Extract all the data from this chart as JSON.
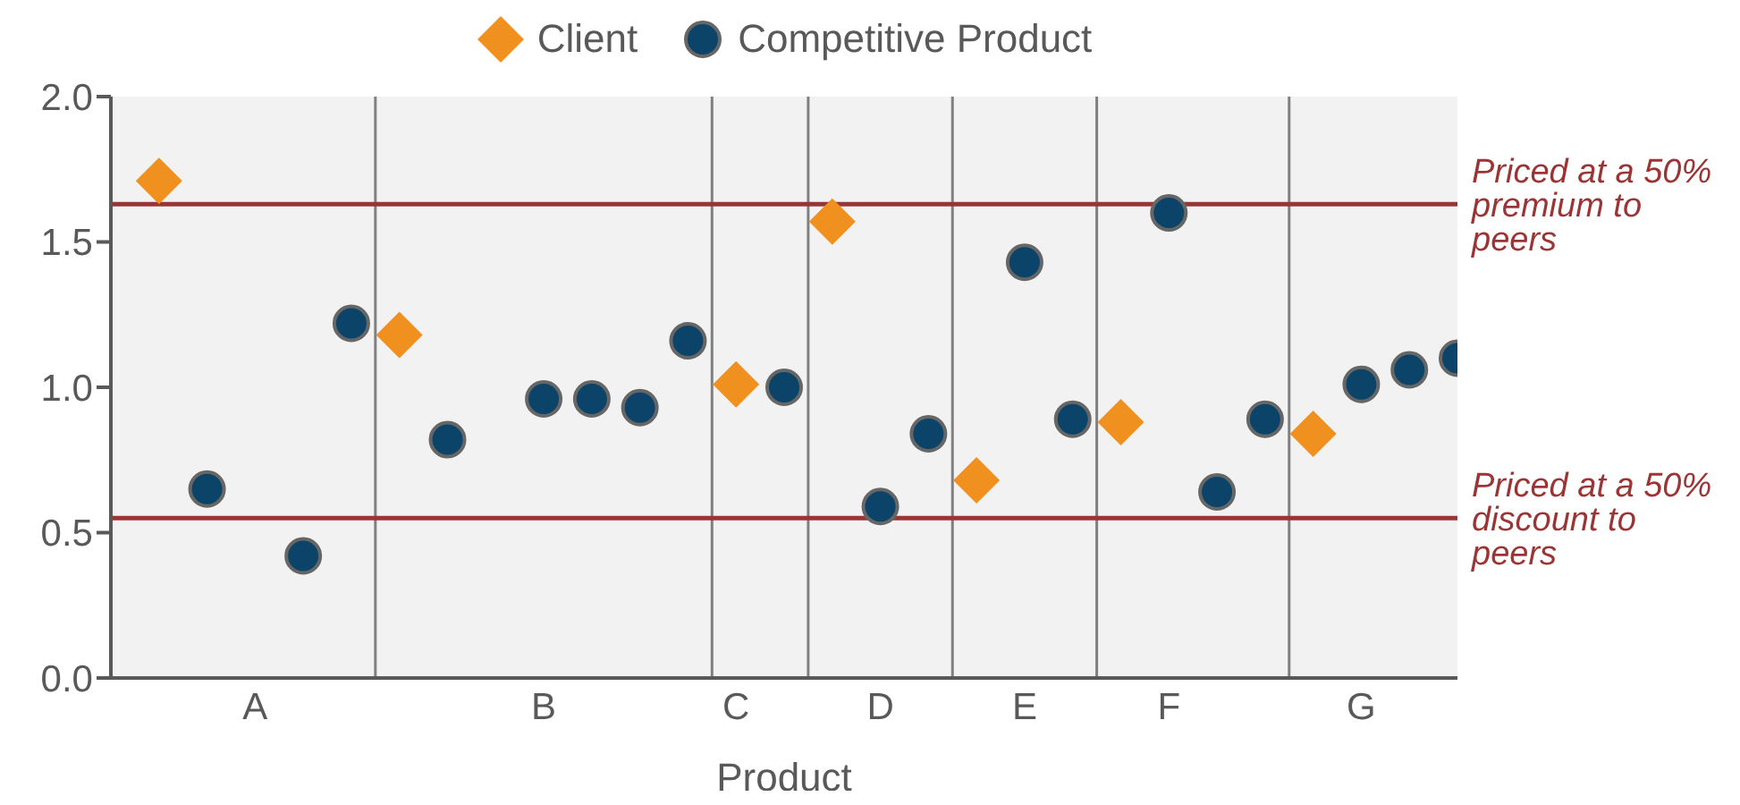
{
  "chart_data": {
    "type": "scatter",
    "xlabel": "Product",
    "legend": "top",
    "categories": [
      null,
      null,
      "A",
      null,
      null,
      null,
      null,
      null,
      "B",
      null,
      null,
      null,
      "C",
      null,
      null,
      "D",
      null,
      null,
      "E",
      null,
      null,
      "F",
      null,
      null,
      null,
      "G",
      null,
      null
    ],
    "ylim": [
      0,
      2
    ],
    "yticks": [
      {
        "value": 0,
        "label": "0.0"
      },
      {
        "value": 0.5,
        "label": "0.5"
      },
      {
        "value": 1,
        "label": "1.0"
      },
      {
        "value": 1.5,
        "label": "1.5"
      },
      {
        "value": 2,
        "label": "2.0"
      }
    ],
    "series": [
      {
        "name": "Client",
        "color": "#f0901e",
        "marker": "diamond",
        "values": [
          1.71,
          null,
          null,
          null,
          null,
          1.18,
          null,
          null,
          null,
          null,
          null,
          null,
          1.01,
          null,
          1.57,
          null,
          null,
          0.68,
          null,
          null,
          0.88,
          null,
          null,
          null,
          0.84,
          null,
          null,
          null
        ]
      },
      {
        "name": "Competitive Product",
        "color": "#0b4468",
        "marker": "circle",
        "values": [
          null,
          0.65,
          null,
          0.42,
          1.22,
          null,
          0.82,
          null,
          0.96,
          0.96,
          0.93,
          1.16,
          null,
          1.0,
          null,
          0.59,
          0.84,
          null,
          1.43,
          0.89,
          null,
          1.6,
          0.64,
          0.89,
          null,
          1.01,
          1.06,
          1.1
        ]
      }
    ],
    "ref_lines": [
      {
        "axis": "y",
        "value": 1.63,
        "label": "Priced at a 50% premium to peers",
        "color": "#9b3535"
      },
      {
        "axis": "y",
        "value": 0.55,
        "label": "Priced at a 50% discount to peers",
        "color": "#9b3535"
      }
    ]
  }
}
